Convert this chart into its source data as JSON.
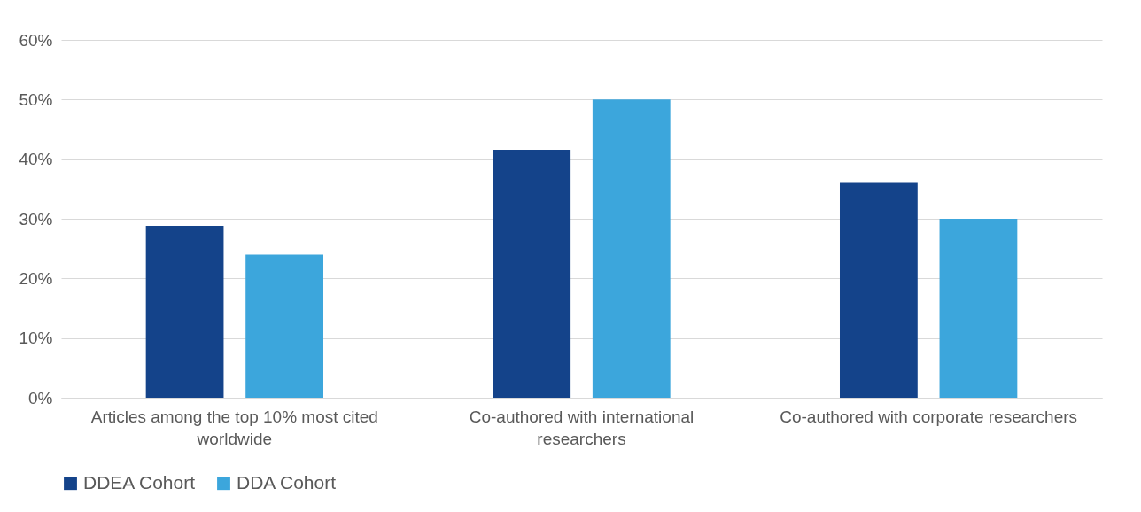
{
  "chart_data": {
    "type": "bar",
    "categories": [
      "Articles among the top 10% most cited worldwide",
      "Co-authored with international researchers",
      "Co-authored with corporate researchers"
    ],
    "series": [
      {
        "name": "DDEA Cohort",
        "color": "#14438a",
        "values": [
          28.8,
          41.6,
          36
        ]
      },
      {
        "name": "DDA Cohort",
        "color": "#3ca6dc",
        "values": [
          24,
          50,
          30
        ]
      }
    ],
    "ylim": [
      0,
      60
    ],
    "yticks": [
      {
        "value": 0,
        "label": "0%"
      },
      {
        "value": 10,
        "label": "10%"
      },
      {
        "value": 20,
        "label": "20%"
      },
      {
        "value": 30,
        "label": "30%"
      },
      {
        "value": 40,
        "label": "40%"
      },
      {
        "value": 50,
        "label": "50%"
      },
      {
        "value": 60,
        "label": "60%"
      }
    ],
    "grid": "y",
    "legend": "bottom"
  }
}
